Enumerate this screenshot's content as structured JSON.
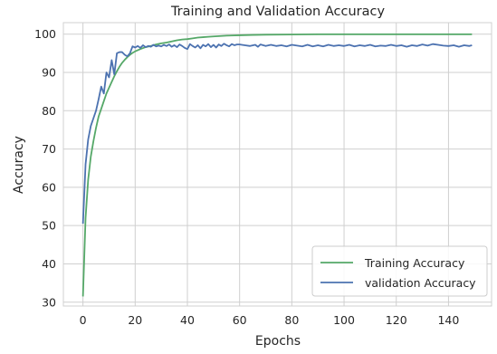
{
  "chart_data": {
    "type": "line",
    "title": "Training and Validation Accuracy",
    "xlabel": "Epochs",
    "ylabel": "Accuracy",
    "xlim": [
      -7.5,
      156.5
    ],
    "ylim": [
      29,
      103
    ],
    "xticks": [
      0,
      20,
      40,
      60,
      80,
      100,
      120,
      140
    ],
    "yticks": [
      30,
      40,
      50,
      60,
      70,
      80,
      90,
      100
    ],
    "grid": true,
    "legend": "lower-right",
    "series": [
      {
        "name": "Training Accuracy",
        "color": "#55a868",
        "points": [
          [
            0,
            31.5
          ],
          [
            1,
            52
          ],
          [
            2,
            62
          ],
          [
            3,
            68
          ],
          [
            4,
            72
          ],
          [
            5,
            75.5
          ],
          [
            6,
            78.5
          ],
          [
            7,
            80.5
          ],
          [
            8,
            82.5
          ],
          [
            9,
            84.5
          ],
          [
            10,
            86
          ],
          [
            11,
            87.5
          ],
          [
            12,
            89
          ],
          [
            13,
            90.3
          ],
          [
            14,
            91.5
          ],
          [
            15,
            92.5
          ],
          [
            16,
            93.3
          ],
          [
            17,
            94
          ],
          [
            18,
            94.6
          ],
          [
            19,
            95.1
          ],
          [
            20,
            95.5
          ],
          [
            22,
            96.1
          ],
          [
            24,
            96.6
          ],
          [
            26,
            96.9
          ],
          [
            28,
            97.3
          ],
          [
            30,
            97.6
          ],
          [
            32,
            97.8
          ],
          [
            34,
            98.1
          ],
          [
            36,
            98.4
          ],
          [
            38,
            98.6
          ],
          [
            40,
            98.7
          ],
          [
            42,
            98.9
          ],
          [
            44,
            99.1
          ],
          [
            46,
            99.2
          ],
          [
            48,
            99.3
          ],
          [
            50,
            99.4
          ],
          [
            55,
            99.6
          ],
          [
            60,
            99.7
          ],
          [
            65,
            99.8
          ],
          [
            70,
            99.85
          ],
          [
            80,
            99.9
          ],
          [
            90,
            99.95
          ],
          [
            100,
            99.95
          ],
          [
            110,
            99.95
          ],
          [
            120,
            99.95
          ],
          [
            130,
            99.95
          ],
          [
            140,
            99.95
          ],
          [
            149,
            99.95
          ]
        ]
      },
      {
        "name": "validation Accuracy",
        "color": "#4c72b0",
        "points": [
          [
            0,
            50.5
          ],
          [
            1,
            66
          ],
          [
            2,
            72.5
          ],
          [
            3,
            76
          ],
          [
            4,
            78
          ],
          [
            5,
            80
          ],
          [
            6,
            83
          ],
          [
            7,
            86.3
          ],
          [
            8,
            84.5
          ],
          [
            9,
            90
          ],
          [
            10,
            88.7
          ],
          [
            11,
            93.2
          ],
          [
            12,
            89.5
          ],
          [
            13,
            95
          ],
          [
            14,
            95.3
          ],
          [
            15,
            95.3
          ],
          [
            16,
            94.6
          ],
          [
            17,
            94.2
          ],
          [
            18,
            95
          ],
          [
            19,
            96.8
          ],
          [
            20,
            96.5
          ],
          [
            21,
            96.9
          ],
          [
            22,
            96.4
          ],
          [
            23,
            97.1
          ],
          [
            24,
            96.6
          ],
          [
            25,
            96.9
          ],
          [
            26,
            96.7
          ],
          [
            27,
            97.2
          ],
          [
            28,
            96.8
          ],
          [
            29,
            97
          ],
          [
            30,
            96.8
          ],
          [
            31,
            97.2
          ],
          [
            32,
            96.9
          ],
          [
            33,
            97.3
          ],
          [
            34,
            96.7
          ],
          [
            35,
            97.1
          ],
          [
            36,
            96.6
          ],
          [
            37,
            97.3
          ],
          [
            38,
            96.9
          ],
          [
            39,
            96.4
          ],
          [
            40,
            96.1
          ],
          [
            41,
            97.4
          ],
          [
            42,
            96.9
          ],
          [
            43,
            96.5
          ],
          [
            44,
            97.1
          ],
          [
            45,
            96.3
          ],
          [
            46,
            97.2
          ],
          [
            47,
            96.8
          ],
          [
            48,
            97.4
          ],
          [
            49,
            96.6
          ],
          [
            50,
            97.2
          ],
          [
            51,
            96.5
          ],
          [
            52,
            97.3
          ],
          [
            53,
            96.9
          ],
          [
            54,
            97.5
          ],
          [
            55,
            97.1
          ],
          [
            56,
            96.8
          ],
          [
            57,
            97.4
          ],
          [
            58,
            97.1
          ],
          [
            59,
            97.3
          ],
          [
            60,
            97.3
          ],
          [
            62,
            97.1
          ],
          [
            64,
            96.9
          ],
          [
            66,
            97.2
          ],
          [
            67,
            96.7
          ],
          [
            68,
            97.3
          ],
          [
            70,
            96.9
          ],
          [
            72,
            97.2
          ],
          [
            74,
            96.9
          ],
          [
            76,
            97.1
          ],
          [
            78,
            96.8
          ],
          [
            80,
            97.2
          ],
          [
            82,
            97
          ],
          [
            84,
            96.8
          ],
          [
            86,
            97.2
          ],
          [
            88,
            96.8
          ],
          [
            90,
            97.1
          ],
          [
            92,
            96.8
          ],
          [
            94,
            97.2
          ],
          [
            96,
            96.9
          ],
          [
            98,
            97.1
          ],
          [
            100,
            96.9
          ],
          [
            102,
            97.2
          ],
          [
            104,
            96.8
          ],
          [
            106,
            97.1
          ],
          [
            108,
            96.9
          ],
          [
            110,
            97.2
          ],
          [
            112,
            96.8
          ],
          [
            114,
            97
          ],
          [
            116,
            96.9
          ],
          [
            118,
            97.2
          ],
          [
            120,
            96.9
          ],
          [
            122,
            97.1
          ],
          [
            124,
            96.7
          ],
          [
            126,
            97.1
          ],
          [
            128,
            96.9
          ],
          [
            130,
            97.3
          ],
          [
            132,
            97
          ],
          [
            134,
            97.4
          ],
          [
            136,
            97.2
          ],
          [
            138,
            97
          ],
          [
            140,
            96.9
          ],
          [
            142,
            97.1
          ],
          [
            144,
            96.7
          ],
          [
            146,
            97.1
          ],
          [
            148,
            96.9
          ],
          [
            149,
            97.1
          ]
        ]
      }
    ]
  }
}
